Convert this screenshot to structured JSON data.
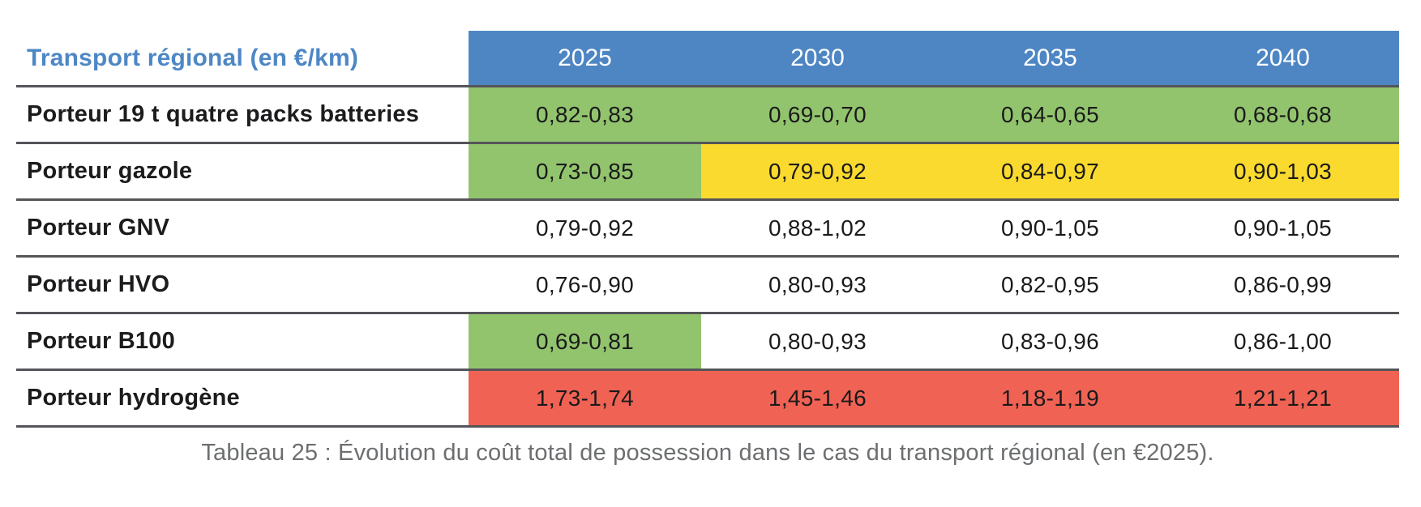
{
  "chart_data": {
    "type": "table",
    "title": "Transport régional (en €/km)",
    "columns": [
      "2025",
      "2030",
      "2035",
      "2040"
    ],
    "rows": [
      {
        "label": "Porteur 19 t quatre packs batteries",
        "values": [
          "0,82-0,83",
          "0,69-0,70",
          "0,64-0,65",
          "0,68-0,68"
        ],
        "colors": [
          "green",
          "green",
          "green",
          "green"
        ]
      },
      {
        "label": "Porteur gazole",
        "values": [
          "0,73-0,85",
          "0,79-0,92",
          "0,84-0,97",
          "0,90-1,03"
        ],
        "colors": [
          "green",
          "yellow",
          "yellow",
          "yellow"
        ]
      },
      {
        "label": "Porteur GNV",
        "values": [
          "0,79-0,92",
          "0,88-1,02",
          "0,90-1,05",
          "0,90-1,05"
        ],
        "colors": [
          "none",
          "none",
          "none",
          "none"
        ]
      },
      {
        "label": "Porteur HVO",
        "values": [
          "0,76-0,90",
          "0,80-0,93",
          "0,82-0,95",
          "0,86-0,99"
        ],
        "colors": [
          "none",
          "none",
          "none",
          "none"
        ]
      },
      {
        "label": "Porteur B100",
        "values": [
          "0,69-0,81",
          "0,80-0,93",
          "0,83-0,96",
          "0,86-1,00"
        ],
        "colors": [
          "green",
          "none",
          "none",
          "none"
        ]
      },
      {
        "label": "Porteur hydrogène",
        "values": [
          "1,73-1,74",
          "1,45-1,46",
          "1,18-1,19",
          "1,21-1,21"
        ],
        "colors": [
          "red",
          "red",
          "red",
          "red"
        ]
      }
    ],
    "caption": "Tableau 25 : Évolution du coût total de possession dans le cas du transport régional (en €2025)."
  },
  "colors": {
    "header_bg": "#4e86c4",
    "header_text": "#ffffff",
    "title_text": "#4e87c5",
    "green": "#92c46e",
    "yellow": "#fada2e",
    "red": "#ef6254",
    "separator": "#545559",
    "caption_text": "#6c6e70"
  }
}
